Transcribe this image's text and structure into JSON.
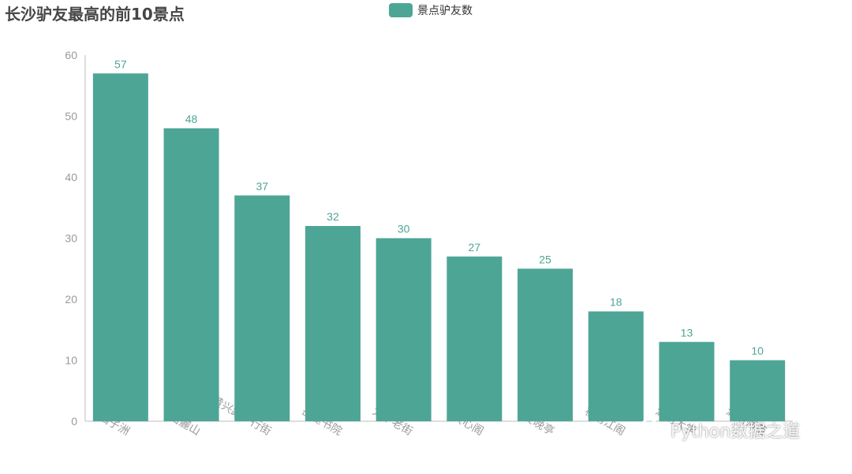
{
  "colors": {
    "bar": "#4da596",
    "label": "#4da596",
    "axis_text": "#9a9a9a",
    "axis_line": "#bdbdbd"
  },
  "legend": {
    "label": "景点驴友数",
    "position": "top-center"
  },
  "watermark": {
    "text": "Python数据之道",
    "icon": "wechat-icon"
  },
  "chart_data": {
    "type": "bar",
    "title": "长沙驴友最高的前10景点",
    "xlabel": "",
    "ylabel": "",
    "ylim": [
      0,
      60
    ],
    "yticks": [
      0,
      10,
      20,
      30,
      40,
      50,
      60
    ],
    "grid": false,
    "categories": [
      "橘子洲",
      "岳麓山",
      "黄兴路步行街",
      "岳麓书院",
      "太平老街",
      "天心阁",
      "爱晚亭",
      "杜甫江阁",
      "湖南大学",
      "湖南师范"
    ],
    "series": [
      {
        "name": "景点驴友数",
        "values": [
          57,
          48,
          37,
          32,
          30,
          27,
          25,
          18,
          13,
          10
        ]
      }
    ]
  }
}
